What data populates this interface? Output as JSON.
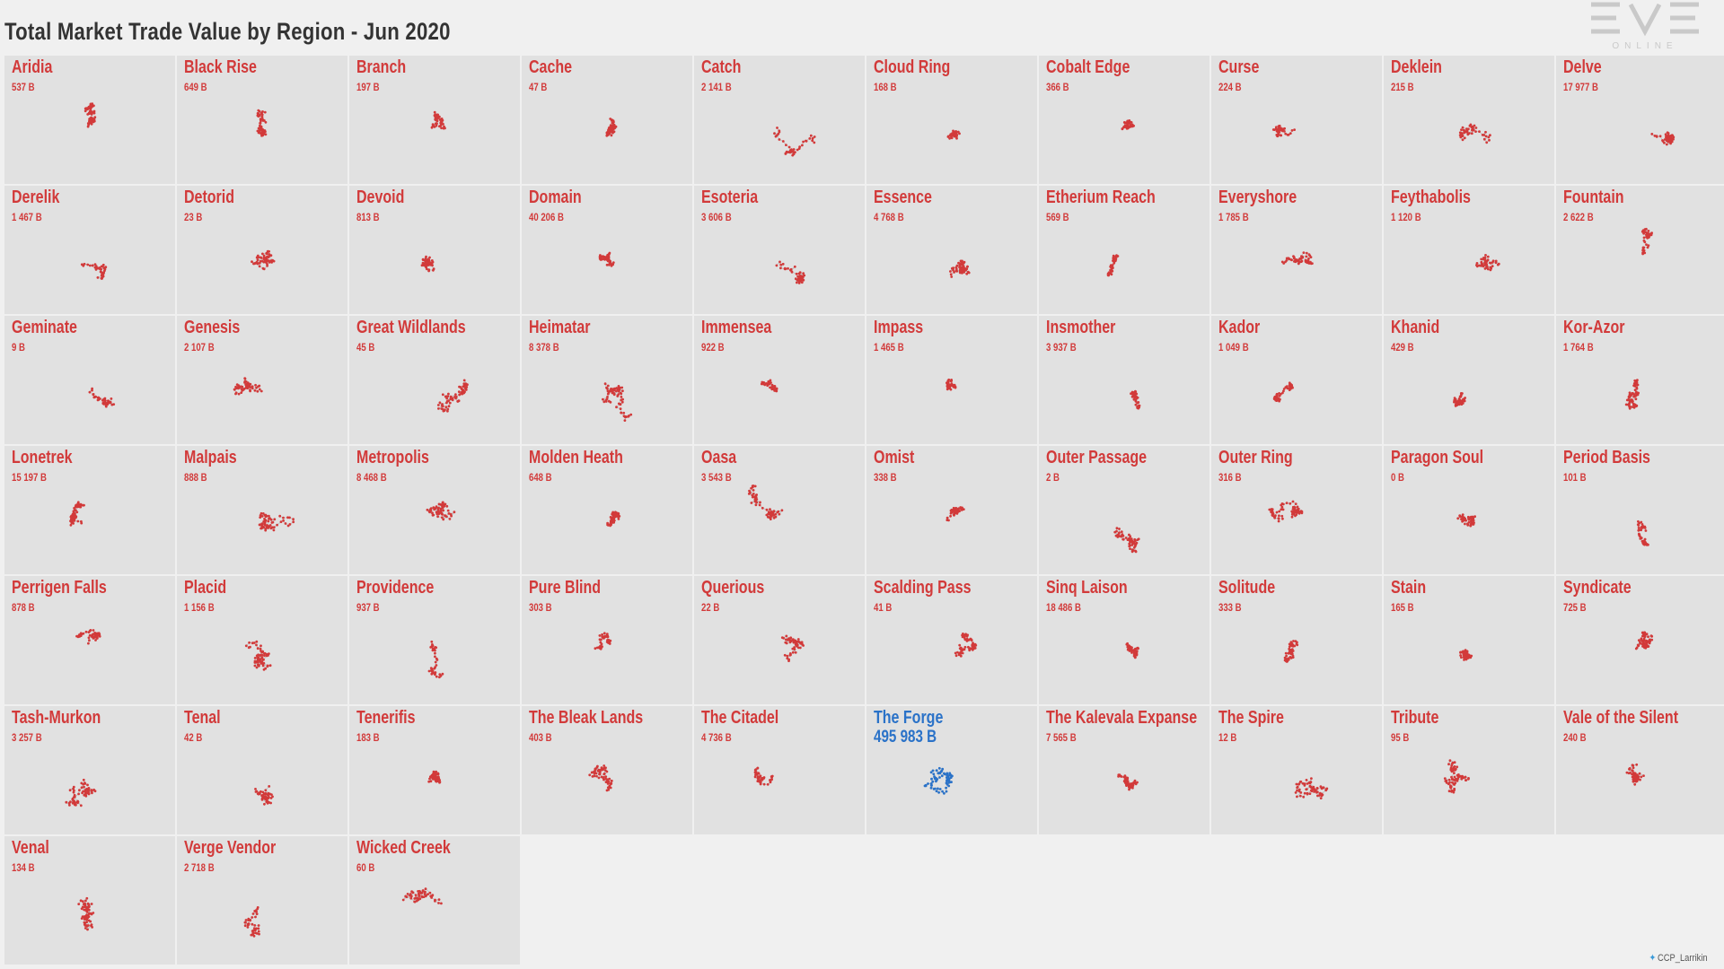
{
  "title": "Total Market Trade Value by Region - Jun 2020",
  "logo": {
    "text": "EVE",
    "subtext": "ONLINE"
  },
  "credit": "CCP_Larrikin",
  "colors": {
    "normal": "#d23a3a",
    "highlight": "#2a72c8",
    "line": "#bbbbbb"
  },
  "chart_data": {
    "type": "small-multiples",
    "title": "Total Market Trade Value by Region - Jun 2020",
    "unit": "B",
    "highlight": "The Forge",
    "regions": [
      {
        "name": "Aridia",
        "label": "537 B",
        "value": 537
      },
      {
        "name": "Black Rise",
        "label": "649 B",
        "value": 649
      },
      {
        "name": "Branch",
        "label": "197 B",
        "value": 197
      },
      {
        "name": "Cache",
        "label": "47 B",
        "value": 47
      },
      {
        "name": "Catch",
        "label": "2 141 B",
        "value": 2141
      },
      {
        "name": "Cloud Ring",
        "label": "168 B",
        "value": 168
      },
      {
        "name": "Cobalt Edge",
        "label": "366 B",
        "value": 366
      },
      {
        "name": "Curse",
        "label": "224 B",
        "value": 224
      },
      {
        "name": "Deklein",
        "label": "215 B",
        "value": 215
      },
      {
        "name": "Delve",
        "label": "17 977 B",
        "value": 17977
      },
      {
        "name": "Derelik",
        "label": "1 467 B",
        "value": 1467
      },
      {
        "name": "Detorid",
        "label": "23 B",
        "value": 23
      },
      {
        "name": "Devoid",
        "label": "813 B",
        "value": 813
      },
      {
        "name": "Domain",
        "label": "40 206 B",
        "value": 40206
      },
      {
        "name": "Esoteria",
        "label": "3 606 B",
        "value": 3606
      },
      {
        "name": "Essence",
        "label": "4 768 B",
        "value": 4768
      },
      {
        "name": "Etherium Reach",
        "label": "569 B",
        "value": 569
      },
      {
        "name": "Everyshore",
        "label": "1 785 B",
        "value": 1785
      },
      {
        "name": "Feythabolis",
        "label": "1 120 B",
        "value": 1120
      },
      {
        "name": "Fountain",
        "label": "2 622 B",
        "value": 2622
      },
      {
        "name": "Geminate",
        "label": "9 B",
        "value": 9
      },
      {
        "name": "Genesis",
        "label": "2 107 B",
        "value": 2107
      },
      {
        "name": "Great Wildlands",
        "label": "45 B",
        "value": 45
      },
      {
        "name": "Heimatar",
        "label": "8 378 B",
        "value": 8378
      },
      {
        "name": "Immensea",
        "label": "922 B",
        "value": 922
      },
      {
        "name": "Impass",
        "label": "1 465 B",
        "value": 1465
      },
      {
        "name": "Insmother",
        "label": "3 937 B",
        "value": 3937
      },
      {
        "name": "Kador",
        "label": "1 049 B",
        "value": 1049
      },
      {
        "name": "Khanid",
        "label": "429 B",
        "value": 429
      },
      {
        "name": "Kor-Azor",
        "label": "1 764 B",
        "value": 1764
      },
      {
        "name": "Lonetrek",
        "label": "15 197 B",
        "value": 15197
      },
      {
        "name": "Malpais",
        "label": "888 B",
        "value": 888
      },
      {
        "name": "Metropolis",
        "label": "8 468 B",
        "value": 8468
      },
      {
        "name": "Molden Heath",
        "label": "648 B",
        "value": 648
      },
      {
        "name": "Oasa",
        "label": "3 543 B",
        "value": 3543
      },
      {
        "name": "Omist",
        "label": "338 B",
        "value": 338
      },
      {
        "name": "Outer Passage",
        "label": "2 B",
        "value": 2
      },
      {
        "name": "Outer Ring",
        "label": "316 B",
        "value": 316
      },
      {
        "name": "Paragon Soul",
        "label": "0 B",
        "value": 0
      },
      {
        "name": "Period Basis",
        "label": "101 B",
        "value": 101
      },
      {
        "name": "Perrigen Falls",
        "label": "878 B",
        "value": 878
      },
      {
        "name": "Placid",
        "label": "1 156 B",
        "value": 1156
      },
      {
        "name": "Providence",
        "label": "937 B",
        "value": 937
      },
      {
        "name": "Pure Blind",
        "label": "303 B",
        "value": 303
      },
      {
        "name": "Querious",
        "label": "22 B",
        "value": 22
      },
      {
        "name": "Scalding Pass",
        "label": "41 B",
        "value": 41
      },
      {
        "name": "Sinq Laison",
        "label": "18 486 B",
        "value": 18486
      },
      {
        "name": "Solitude",
        "label": "333 B",
        "value": 333
      },
      {
        "name": "Stain",
        "label": "165 B",
        "value": 165
      },
      {
        "name": "Syndicate",
        "label": "725 B",
        "value": 725
      },
      {
        "name": "Tash-Murkon",
        "label": "3 257 B",
        "value": 3257
      },
      {
        "name": "Tenal",
        "label": "42 B",
        "value": 42
      },
      {
        "name": "Tenerifis",
        "label": "183 B",
        "value": 183
      },
      {
        "name": "The Bleak Lands",
        "label": "403 B",
        "value": 403
      },
      {
        "name": "The Citadel",
        "label": "4 736 B",
        "value": 4736
      },
      {
        "name": "The Forge",
        "label": "495 983 B",
        "value": 495983
      },
      {
        "name": "The Kalevala Expanse",
        "label": "7 565 B",
        "value": 7565
      },
      {
        "name": "The Spire",
        "label": "12 B",
        "value": 12
      },
      {
        "name": "Tribute",
        "label": "95 B",
        "value": 95
      },
      {
        "name": "Vale of the Silent",
        "label": "240 B",
        "value": 240
      },
      {
        "name": "Venal",
        "label": "134 B",
        "value": 134
      },
      {
        "name": "Verge Vendor",
        "label": "2 718 B",
        "value": 2718
      },
      {
        "name": "Wicked Creek",
        "label": "60 B",
        "value": 60
      }
    ]
  }
}
